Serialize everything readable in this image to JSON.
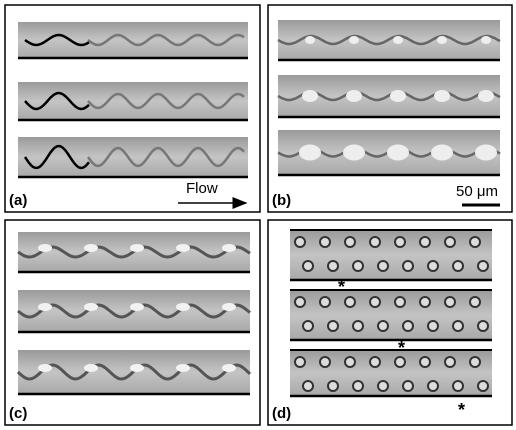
{
  "panels": [
    {
      "label": "(a)",
      "annotation": "Flow"
    },
    {
      "label": "(b)",
      "annotation": "50 μm"
    },
    {
      "label": "(c)"
    },
    {
      "label": "(d)",
      "markers": [
        "*",
        "*",
        "*"
      ]
    }
  ]
}
